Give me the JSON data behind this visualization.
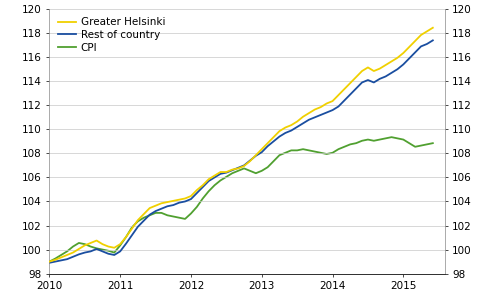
{
  "ylim": [
    98,
    120
  ],
  "yticks": [
    98,
    100,
    102,
    104,
    106,
    108,
    110,
    112,
    114,
    116,
    118,
    120
  ],
  "xlim": [
    2010.0,
    2015.583
  ],
  "xticks": [
    2010,
    2011,
    2012,
    2013,
    2014,
    2015
  ],
  "colors": {
    "helsinki": "#f0d000",
    "rest": "#1a4ea0",
    "cpi": "#50a030"
  },
  "background": "#ffffff",
  "grid_color": "#c8c8c8",
  "legend_labels": [
    "Greater Helsinki",
    "Rest of country",
    "CPI"
  ],
  "helsinki": [
    99.0,
    99.15,
    99.35,
    99.55,
    99.75,
    100.05,
    100.35,
    100.55,
    100.75,
    100.45,
    100.25,
    100.15,
    100.45,
    101.05,
    101.75,
    102.45,
    102.95,
    103.45,
    103.65,
    103.85,
    103.95,
    104.05,
    104.15,
    104.25,
    104.45,
    104.95,
    105.35,
    105.85,
    106.15,
    106.45,
    106.45,
    106.65,
    106.75,
    106.95,
    107.35,
    107.85,
    108.35,
    108.85,
    109.35,
    109.85,
    110.15,
    110.35,
    110.65,
    111.05,
    111.35,
    111.65,
    111.85,
    112.15,
    112.35,
    112.85,
    113.35,
    113.85,
    114.35,
    114.85,
    115.15,
    114.85,
    115.05,
    115.35,
    115.65,
    115.95,
    116.35,
    116.85,
    117.35,
    117.85,
    118.15,
    118.45
  ],
  "rest": [
    98.9,
    99.0,
    99.1,
    99.2,
    99.4,
    99.6,
    99.75,
    99.85,
    100.05,
    99.85,
    99.65,
    99.55,
    99.85,
    100.5,
    101.2,
    101.9,
    102.4,
    102.9,
    103.2,
    103.4,
    103.6,
    103.7,
    103.9,
    104.0,
    104.2,
    104.7,
    105.2,
    105.7,
    106.0,
    106.3,
    106.4,
    106.6,
    106.8,
    107.0,
    107.4,
    107.8,
    108.1,
    108.6,
    109.0,
    109.4,
    109.7,
    109.9,
    110.2,
    110.5,
    110.8,
    111.0,
    111.2,
    111.4,
    111.6,
    111.9,
    112.4,
    112.9,
    113.4,
    113.9,
    114.1,
    113.9,
    114.2,
    114.4,
    114.7,
    115.0,
    115.4,
    115.9,
    116.4,
    116.9,
    117.1,
    117.4
  ],
  "cpi": [
    99.0,
    99.25,
    99.55,
    99.85,
    100.25,
    100.55,
    100.45,
    100.25,
    100.1,
    100.0,
    99.9,
    99.75,
    100.35,
    101.05,
    101.85,
    102.35,
    102.65,
    102.85,
    103.05,
    103.05,
    102.85,
    102.75,
    102.65,
    102.55,
    103.0,
    103.55,
    104.25,
    104.85,
    105.35,
    105.75,
    106.05,
    106.35,
    106.55,
    106.75,
    106.55,
    106.35,
    106.55,
    106.85,
    107.35,
    107.85,
    108.05,
    108.25,
    108.25,
    108.35,
    108.25,
    108.15,
    108.05,
    107.95,
    108.05,
    108.35,
    108.55,
    108.75,
    108.85,
    109.05,
    109.15,
    109.05,
    109.15,
    109.25,
    109.35,
    109.25,
    109.15,
    108.85,
    108.55,
    108.65,
    108.75,
    108.85
  ]
}
